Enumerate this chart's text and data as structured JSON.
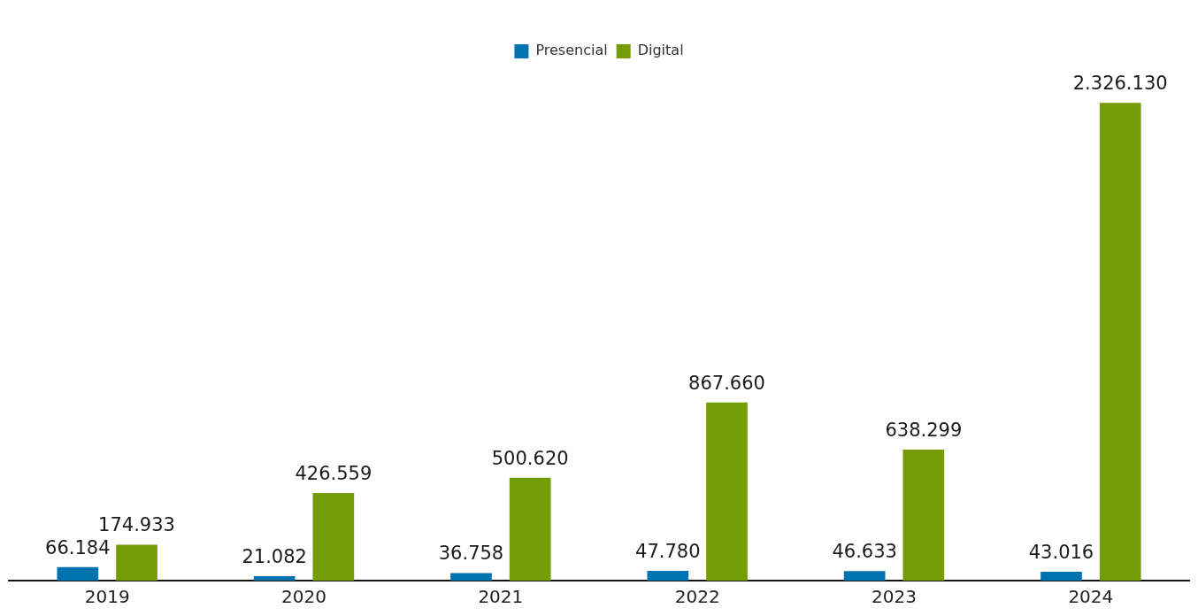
{
  "chart_data": {
    "type": "bar",
    "categories": [
      "2019",
      "2020",
      "2021",
      "2022",
      "2023",
      "2024"
    ],
    "series": [
      {
        "name": "Presencial",
        "color": "#0072b0",
        "values": [
          66184,
          21082,
          36758,
          47780,
          46633,
          43016
        ],
        "value_labels": [
          "66.184",
          "21.082",
          "36.758",
          "47.780",
          "46.633",
          "43.016"
        ]
      },
      {
        "name": "Digital",
        "color": "#739c05",
        "values": [
          174933,
          426559,
          500620,
          867660,
          638299,
          2326130
        ],
        "value_labels": [
          "174.933",
          "426.559",
          "500.620",
          "867.660",
          "638.299",
          "2.326.130"
        ]
      }
    ],
    "legend": "top",
    "grid": false,
    "tick_labels": "x"
  }
}
